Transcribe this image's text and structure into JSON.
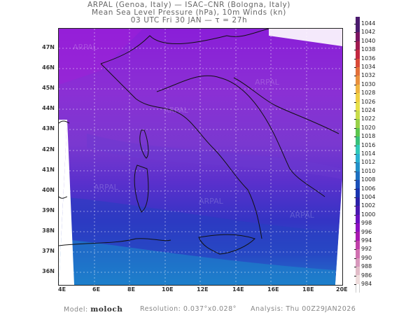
{
  "header": {
    "line1": "ARPAL (Genoa, Italy)  —  ISAC–CNR (Bologna, Italy)",
    "line2": "Mean Sea Level Pressure (hPa), 10m Winds (kn)",
    "line3": "03 UTC Fri 30 JAN   —   τ = 27h"
  },
  "map": {
    "lat_ticks": [
      "47N",
      "46N",
      "45N",
      "44N",
      "43N",
      "42N",
      "41N",
      "40N",
      "39N",
      "38N",
      "37N",
      "36N"
    ],
    "lon_ticks": [
      "4E",
      "6E",
      "8E",
      "10E",
      "12E",
      "14E",
      "16E",
      "18E",
      "20E"
    ],
    "watermark": "ARPAL"
  },
  "colorbar": {
    "labels": [
      "1044",
      "1042",
      "1040",
      "1038",
      "1036",
      "1034",
      "1032",
      "1030",
      "1028",
      "1026",
      "1024",
      "1022",
      "1020",
      "1018",
      "1016",
      "1014",
      "1012",
      "1010",
      "1008",
      "1006",
      "1004",
      "1002",
      "1000",
      "998",
      "996",
      "994",
      "992",
      "990",
      "988",
      "986",
      "984"
    ],
    "colors": [
      "#4b1a6e",
      "#7a1460",
      "#a01a50",
      "#c22840",
      "#d94a38",
      "#e2703a",
      "#e8903e",
      "#eeb440",
      "#efd044",
      "#e6e04a",
      "#c8dc4a",
      "#98d048",
      "#5cc64e",
      "#38c07a",
      "#30c8b8",
      "#2ab0d0",
      "#2290c8",
      "#1e70c0",
      "#1a50b8",
      "#1834b0",
      "#2a20a8",
      "#4818b0",
      "#6a10c0",
      "#8c10c0",
      "#a818b0",
      "#c040a8",
      "#d070b0",
      "#d898bc",
      "#e2bcc8",
      "#eedcdc",
      "#ffffff"
    ]
  },
  "footer": {
    "model_label": "Model:",
    "model_value": "moloch",
    "resolution": "Resolution: 0.037°x0.028°",
    "analysis": "Analysis: Thu  00Z29JAN2026"
  }
}
